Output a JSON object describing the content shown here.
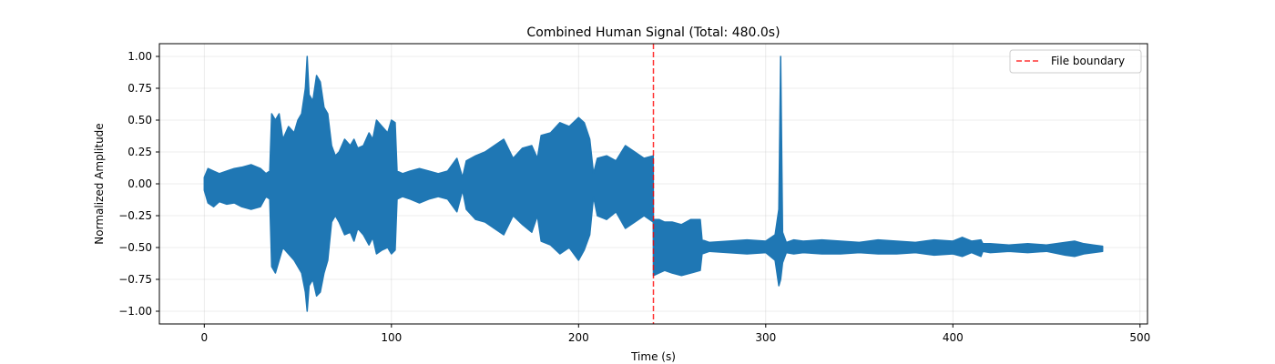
{
  "chart_data": {
    "type": "line",
    "title": "Combined Human Signal (Total: 480.0s)",
    "xlabel": "Time (s)",
    "ylabel": "Normalized Amplitude",
    "xlim": [
      -24,
      504
    ],
    "ylim": [
      -1.1,
      1.1
    ],
    "xticks": [
      0,
      100,
      200,
      300,
      400,
      500
    ],
    "xtick_labels": [
      "0",
      "100",
      "200",
      "300",
      "400",
      "500"
    ],
    "yticks": [
      1.0,
      0.75,
      0.5,
      0.25,
      0.0,
      -0.25,
      -0.5,
      -0.75,
      -1.0
    ],
    "ytick_labels": [
      "1.00",
      "0.75",
      "0.50",
      "0.25",
      "0.00",
      "−0.25",
      "−0.50",
      "−0.75",
      "−1.00"
    ],
    "grid": true,
    "legend_position": "top-right",
    "series": [
      {
        "color": "#1f77b4",
        "envelope": {
          "x": [
            0,
            2,
            5,
            8,
            12,
            16,
            20,
            25,
            30,
            33,
            35,
            36,
            38,
            40,
            42,
            45,
            48,
            50,
            52,
            54,
            55,
            56,
            58,
            60,
            62,
            64,
            66,
            68,
            70,
            72,
            75,
            78,
            80,
            82,
            85,
            88,
            90,
            92,
            95,
            98,
            100,
            102,
            103,
            106,
            110,
            115,
            120,
            125,
            130,
            135,
            138,
            140,
            145,
            150,
            155,
            160,
            165,
            170,
            175,
            178,
            180,
            185,
            190,
            195,
            200,
            203,
            206,
            208,
            210,
            215,
            220,
            225,
            230,
            235,
            239.9,
            240,
            243,
            246,
            250,
            255,
            260,
            265,
            266,
            270,
            280,
            290,
            300,
            305,
            307,
            308,
            309,
            311,
            315,
            320,
            330,
            340,
            350,
            360,
            370,
            380,
            390,
            400,
            405,
            410,
            415,
            416,
            420,
            430,
            440,
            450,
            460,
            465,
            470,
            475,
            480
          ],
          "max": [
            0.05,
            0.12,
            0.1,
            0.08,
            0.1,
            0.12,
            0.13,
            0.15,
            0.12,
            0.08,
            0.1,
            0.55,
            0.5,
            0.55,
            0.35,
            0.45,
            0.4,
            0.5,
            0.55,
            0.75,
            1.0,
            0.7,
            0.65,
            0.85,
            0.8,
            0.6,
            0.55,
            0.3,
            0.22,
            0.25,
            0.35,
            0.3,
            0.35,
            0.28,
            0.3,
            0.4,
            0.35,
            0.5,
            0.45,
            0.4,
            0.5,
            0.48,
            0.1,
            0.08,
            0.1,
            0.12,
            0.1,
            0.08,
            0.1,
            0.2,
            0.05,
            0.18,
            0.22,
            0.25,
            0.3,
            0.35,
            0.2,
            0.28,
            0.3,
            0.2,
            0.38,
            0.4,
            0.48,
            0.45,
            0.52,
            0.48,
            0.35,
            0.08,
            0.2,
            0.22,
            0.18,
            0.3,
            0.25,
            0.2,
            0.22,
            -0.28,
            -0.28,
            -0.3,
            -0.3,
            -0.32,
            -0.28,
            -0.28,
            -0.44,
            -0.46,
            -0.45,
            -0.44,
            -0.45,
            -0.4,
            -0.2,
            1.0,
            -0.38,
            -0.46,
            -0.44,
            -0.45,
            -0.44,
            -0.45,
            -0.46,
            -0.44,
            -0.45,
            -0.46,
            -0.44,
            -0.45,
            -0.42,
            -0.45,
            -0.44,
            -0.47,
            -0.47,
            -0.48,
            -0.47,
            -0.48,
            -0.46,
            -0.45,
            -0.47,
            -0.48,
            -0.49
          ],
          "min": [
            -0.05,
            -0.15,
            -0.18,
            -0.14,
            -0.16,
            -0.15,
            -0.18,
            -0.2,
            -0.18,
            -0.1,
            -0.12,
            -0.65,
            -0.7,
            -0.6,
            -0.5,
            -0.55,
            -0.6,
            -0.65,
            -0.7,
            -0.85,
            -1.0,
            -0.8,
            -0.75,
            -0.88,
            -0.85,
            -0.7,
            -0.6,
            -0.3,
            -0.25,
            -0.3,
            -0.4,
            -0.38,
            -0.45,
            -0.35,
            -0.4,
            -0.48,
            -0.42,
            -0.55,
            -0.52,
            -0.5,
            -0.55,
            -0.52,
            -0.12,
            -0.1,
            -0.12,
            -0.15,
            -0.12,
            -0.1,
            -0.12,
            -0.22,
            -0.05,
            -0.2,
            -0.28,
            -0.3,
            -0.35,
            -0.4,
            -0.25,
            -0.32,
            -0.38,
            -0.25,
            -0.45,
            -0.48,
            -0.55,
            -0.5,
            -0.6,
            -0.52,
            -0.4,
            -0.1,
            -0.25,
            -0.28,
            -0.22,
            -0.35,
            -0.3,
            -0.25,
            -0.3,
            -0.72,
            -0.7,
            -0.68,
            -0.7,
            -0.72,
            -0.7,
            -0.68,
            -0.55,
            -0.53,
            -0.54,
            -0.55,
            -0.54,
            -0.6,
            -0.8,
            -0.75,
            -0.62,
            -0.54,
            -0.55,
            -0.54,
            -0.55,
            -0.55,
            -0.54,
            -0.55,
            -0.55,
            -0.54,
            -0.56,
            -0.55,
            -0.57,
            -0.54,
            -0.57,
            -0.53,
            -0.54,
            -0.53,
            -0.54,
            -0.53,
            -0.56,
            -0.57,
            -0.55,
            -0.54,
            -0.53
          ]
        }
      },
      {
        "name": "File boundary",
        "color": "#ff0000",
        "style": "dashed",
        "x": 240
      }
    ]
  }
}
